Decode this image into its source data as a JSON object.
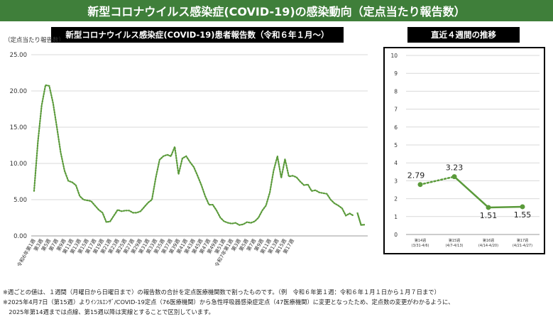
{
  "banner": {
    "title": "新型コロナウイルス感染症(COVID-19)の感染動向（定点当たり報告数）"
  },
  "colors": {
    "accent": "#3f7f3a",
    "series": "#5a9a3a",
    "grid": "#d9d9d9"
  },
  "notes": [
    "※週ごとの値は、１週間（月曜日から日曜日まで）の報告数の合計を定点医療機関数で割ったものです。（例　令和６年第１週：令和６年１月１日から１月７日まで）",
    "※2025年4月7日（第15週）よりｲﾝﾌﾙｴﾝｻﾞ/COVID-19定点（76医療機関）から急性呼吸器感染症定点（47医療機関）に変更となったため、定点数の変更がわかるように、",
    "　2025年第14週までは点線、第15週以降は実線とすることで区別しています。"
  ],
  "chart_data": [
    {
      "type": "line",
      "title": "新型コロナウイルス感染症(COVID-19)患者報告数（令和６年１月～）",
      "ylabel": "（定点当たり報告数）",
      "xlabel": "",
      "ylim": [
        0,
        25
      ],
      "yticks": [
        "0.00",
        "5.00",
        "10.00",
        "15.00",
        "20.00",
        "25.00"
      ],
      "grid": true,
      "x_tick_labels": [
        "令和6年第1週",
        "第3週",
        "第5週",
        "第7週",
        "第9週",
        "第11週",
        "第13週",
        "第15週",
        "第17週",
        "第19週",
        "第21週",
        "第23週",
        "第25週",
        "第27週",
        "第29週",
        "第31週",
        "第33週",
        "第35週",
        "第37週",
        "第39週",
        "第41週",
        "第43週",
        "第45週",
        "第47週",
        "第49週",
        "第51週",
        "令和7年第1週",
        "第3週",
        "第5週",
        "第7週",
        "第9週",
        "第11週",
        "第13週",
        "第15週",
        "第17週"
      ],
      "series": [
        {
          "line_style": "dotted",
          "values": [
            6.2,
            13.0,
            18.0,
            20.8,
            20.7,
            18.3,
            15.0,
            11.5,
            9.0,
            7.6,
            7.4,
            7.0,
            5.5,
            5.0,
            4.9,
            4.8,
            4.2,
            3.6,
            3.2,
            1.9,
            2.0,
            2.8,
            3.6,
            3.4,
            3.5,
            3.5,
            3.2,
            3.2,
            3.4,
            4.0,
            4.6,
            5.0,
            8.0,
            10.5,
            11.0,
            11.2,
            11.0,
            12.3,
            8.5,
            10.7,
            11.0,
            10.2,
            9.5,
            8.3,
            7.0,
            5.5,
            4.3,
            4.3,
            3.5,
            2.5,
            2.0,
            1.8,
            1.7,
            1.8,
            1.5,
            1.6,
            1.9,
            1.8,
            2.0,
            2.5,
            3.5,
            4.2,
            6.0,
            9.0,
            11.0,
            8.0,
            10.6,
            8.2,
            8.3,
            8.1,
            7.5,
            7.0,
            7.1,
            6.2,
            6.3,
            6.0,
            5.9,
            5.8,
            5.0,
            4.5,
            4.2,
            3.8,
            2.8,
            3.1,
            2.79
          ]
        },
        {
          "line_style": "solid",
          "values": [
            3.23,
            1.51,
            1.55
          ]
        }
      ]
    },
    {
      "type": "line",
      "title": "直近４週間の推移",
      "ylim": [
        0,
        10
      ],
      "yticks": [
        "0",
        "1",
        "2",
        "3",
        "4",
        "5",
        "6",
        "7",
        "8",
        "9",
        "10"
      ],
      "categories": [
        "第14週",
        "第15週",
        "第16週",
        "第17週"
      ],
      "date_ranges": [
        "(3/31-4/6)",
        "(4/7-4/13)",
        "(4/14-4/20)",
        "(4/21-4/27)"
      ],
      "values": [
        2.79,
        3.23,
        1.51,
        1.55
      ],
      "value_labels": [
        "2.79",
        "3.23",
        "1.51",
        "1.55"
      ],
      "line_style_by_segment": [
        "dotted",
        "solid",
        "solid"
      ]
    }
  ]
}
